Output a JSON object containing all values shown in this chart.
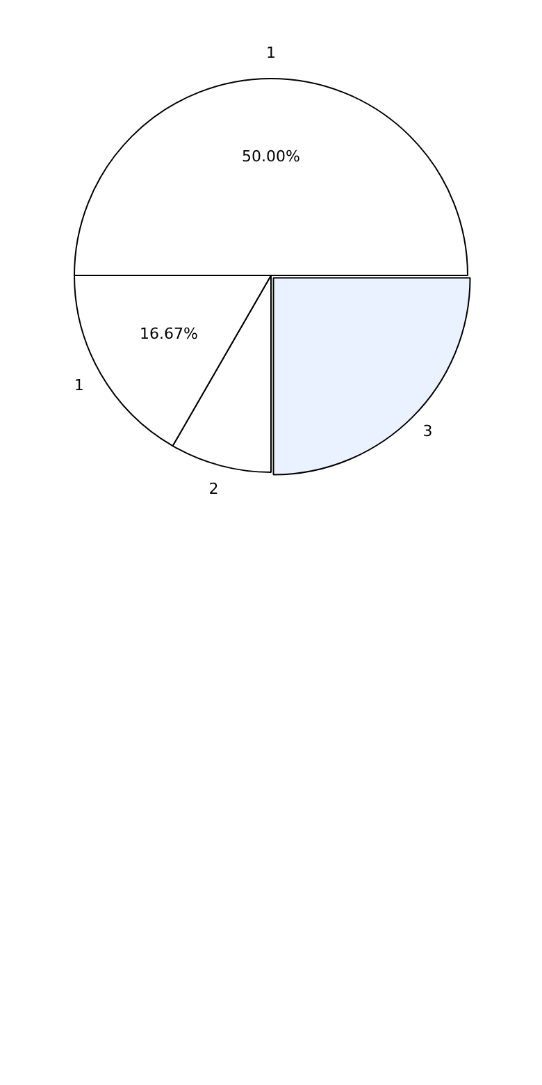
{
  "chart_data": {
    "type": "pie",
    "categories": [
      "3",
      "2",
      "1",
      "1"
    ],
    "values": [
      25,
      8.33,
      16.67,
      50
    ],
    "colors": [
      "#ebf2ff",
      "#ffffff",
      "#ffffff",
      "#ffffff"
    ],
    "value_labels": [
      null,
      null,
      "16.67%",
      "50.00%"
    ],
    "legend": false
  }
}
